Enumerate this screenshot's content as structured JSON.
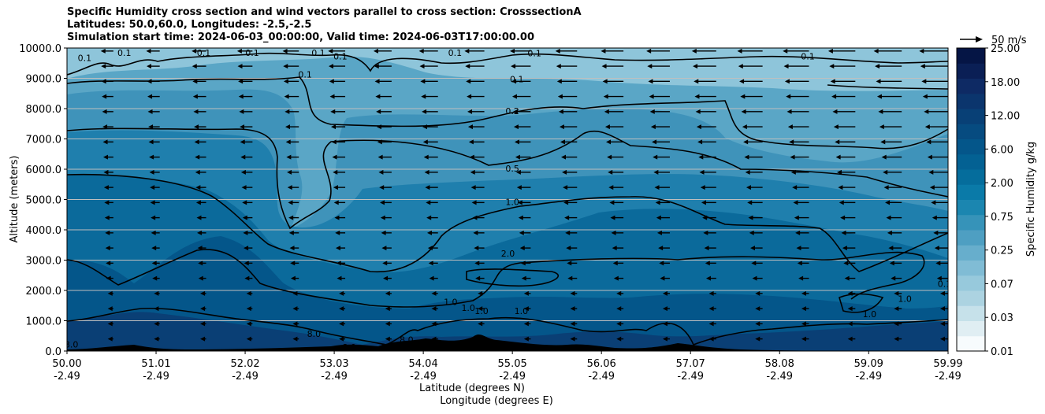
{
  "title": {
    "line1": "Specific Humidity cross section and wind vectors parallel to cross section: CrosssectionA",
    "line2": "Latitudes: 50.0,60.0, Longitudes: -2.5,-2.5",
    "line3": "Simulation start time: 2024-06-03_00:00:00, Valid time: 2024-06-03T17:00:00.00"
  },
  "chart_data": {
    "type": "heatmap",
    "ylabel": "Altitude (meters)",
    "xlabel_lat": "Latitude (degrees N)",
    "xlabel_lon": "Longitude (degrees E)",
    "ylim": [
      0,
      10000
    ],
    "yticks": [
      "0.0",
      "1000.0",
      "2000.0",
      "3000.0",
      "4000.0",
      "5000.0",
      "6000.0",
      "7000.0",
      "8000.0",
      "9000.0",
      "10000.0"
    ],
    "xticks_lat": [
      "50.00",
      "51.01",
      "52.02",
      "53.03",
      "54.04",
      "55.05",
      "56.06",
      "57.07",
      "58.08",
      "59.09",
      "59.99"
    ],
    "xticks_lon": [
      "-2.49",
      "-2.49",
      "-2.49",
      "-2.49",
      "-2.49",
      "-2.49",
      "-2.49",
      "-2.49",
      "-2.49",
      "-2.49",
      "-2.49"
    ],
    "grid": "horizontal",
    "colorbar": {
      "label": "Specific Humidity g/kg",
      "ticks": [
        "0.01",
        "0.03",
        "0.07",
        "0.25",
        "0.75",
        "2.00",
        "6.00",
        "12.00",
        "18.00",
        "25.00"
      ],
      "colors": [
        "#f7fbfd",
        "#e0eef3",
        "#c6e1ea",
        "#acd3e1",
        "#97c9dc",
        "#80bcd5",
        "#67aecc",
        "#4e9fc2",
        "#3693b9",
        "#1b86b0",
        "#0a7aa8",
        "#056d9c",
        "#036193",
        "#04568a",
        "#064b80",
        "#084076",
        "#0b356d",
        "#0e2a64",
        "#0a1f55",
        "#051545"
      ]
    },
    "contour_levels": [
      "0.1",
      "0.2",
      "0.5",
      "1.0",
      "2.0",
      "8.0"
    ],
    "contour_labels": [
      {
        "text": "0.1",
        "x": 50.2,
        "y": 9650
      },
      {
        "text": "0.1",
        "x": 50.65,
        "y": 9820
      },
      {
        "text": "0.1",
        "x": 51.55,
        "y": 9820
      },
      {
        "text": "0.1",
        "x": 52.1,
        "y": 9820
      },
      {
        "text": "0.1",
        "x": 52.85,
        "y": 9820
      },
      {
        "text": "0.1",
        "x": 53.1,
        "y": 9700
      },
      {
        "text": "0.1",
        "x": 52.7,
        "y": 9100
      },
      {
        "text": "0.1",
        "x": 54.4,
        "y": 9820
      },
      {
        "text": "0.1",
        "x": 55.3,
        "y": 9800
      },
      {
        "text": "0.1",
        "x": 55.1,
        "y": 8950
      },
      {
        "text": "0.1",
        "x": 58.4,
        "y": 9700
      },
      {
        "text": "0.1",
        "x": 59.95,
        "y": 2200
      },
      {
        "text": "0.2",
        "x": 55.05,
        "y": 7900
      },
      {
        "text": "0.5",
        "x": 55.05,
        "y": 6000
      },
      {
        "text": "1.0",
        "x": 55.05,
        "y": 4900
      },
      {
        "text": "2.0",
        "x": 55.0,
        "y": 3200
      },
      {
        "text": "1.0",
        "x": 54.35,
        "y": 1600
      },
      {
        "text": "1.0",
        "x": 54.55,
        "y": 1400
      },
      {
        "text": "1.0",
        "x": 54.7,
        "y": 1300
      },
      {
        "text": "1.0",
        "x": 55.15,
        "y": 1300
      },
      {
        "text": "1.0",
        "x": 59.1,
        "y": 1200
      },
      {
        "text": "1.0",
        "x": 59.5,
        "y": 1700
      },
      {
        "text": "8.0",
        "x": 52.8,
        "y": 550
      },
      {
        "text": "8.0",
        "x": 53.2,
        "y": 100
      },
      {
        "text": "8.0",
        "x": 53.85,
        "y": 350
      },
      {
        "text": "8.0",
        "x": 54.05,
        "y": 250
      },
      {
        "text": "8.0",
        "x": 50.05,
        "y": 200
      }
    ],
    "quiver_key": {
      "label": "50 m/s",
      "speed": 50
    }
  }
}
